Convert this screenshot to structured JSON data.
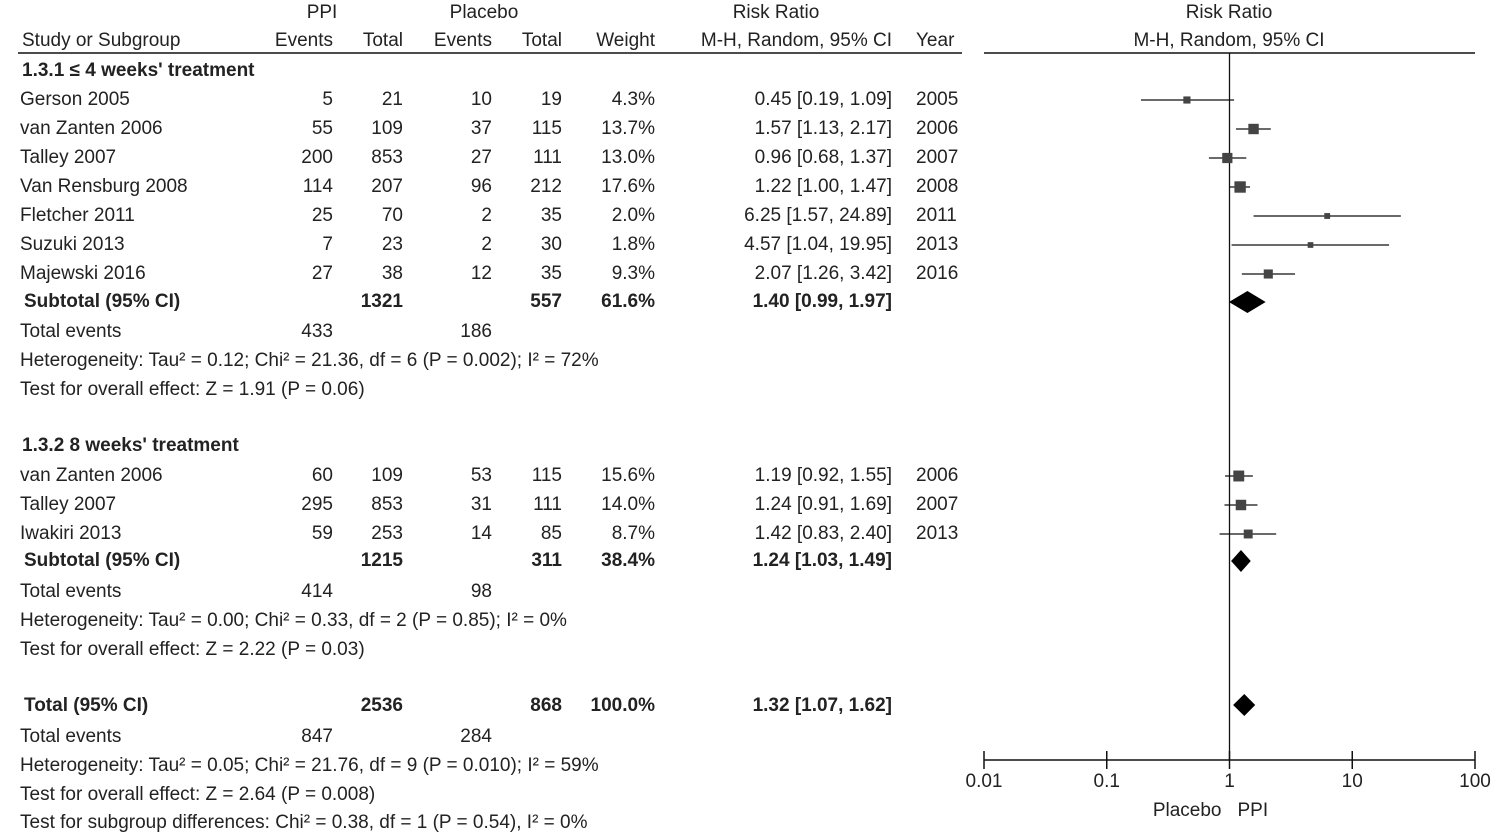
{
  "header": {
    "ppi_label": "PPI",
    "placebo_label": "Placebo",
    "rr_label": "Risk Ratio",
    "plot_rr_label": "Risk Ratio",
    "study_col": "Study or Subgroup",
    "events1": "Events",
    "total1": "Total",
    "events2": "Events",
    "total2": "Total",
    "weight": "Weight",
    "method": "M-H, Random, 95% CI",
    "year": "Year",
    "plot_method": "M-H, Random, 95% CI"
  },
  "subgroups": [
    {
      "title": "1.3.1 ≤ 4 weeks' treatment",
      "studies": [
        {
          "name": "Gerson 2005",
          "e1": "5",
          "t1": "21",
          "e2": "10",
          "t2": "19",
          "w": "4.3%",
          "ci": "0.45 [0.19, 1.09]",
          "year": "2005"
        },
        {
          "name": "van Zanten 2006",
          "e1": "55",
          "t1": "109",
          "e2": "37",
          "t2": "115",
          "w": "13.7%",
          "ci": "1.57 [1.13, 2.17]",
          "year": "2006"
        },
        {
          "name": "Talley 2007",
          "e1": "200",
          "t1": "853",
          "e2": "27",
          "t2": "111",
          "w": "13.0%",
          "ci": "0.96 [0.68, 1.37]",
          "year": "2007"
        },
        {
          "name": "Van Rensburg 2008",
          "e1": "114",
          "t1": "207",
          "e2": "96",
          "t2": "212",
          "w": "17.6%",
          "ci": "1.22 [1.00, 1.47]",
          "year": "2008"
        },
        {
          "name": "Fletcher 2011",
          "e1": "25",
          "t1": "70",
          "e2": "2",
          "t2": "35",
          "w": "2.0%",
          "ci": "6.25 [1.57, 24.89]",
          "year": "2011"
        },
        {
          "name": "Suzuki 2013",
          "e1": "7",
          "t1": "23",
          "e2": "2",
          "t2": "30",
          "w": "1.8%",
          "ci": "4.57 [1.04, 19.95]",
          "year": "2013"
        },
        {
          "name": "Majewski 2016",
          "e1": "27",
          "t1": "38",
          "e2": "12",
          "t2": "35",
          "w": "9.3%",
          "ci": "2.07 [1.26, 3.42]",
          "year": "2016"
        }
      ],
      "subtotal": {
        "label": "Subtotal (95% CI)",
        "t1": "1321",
        "t2": "557",
        "w": "61.6%",
        "ci": "1.40 [0.99, 1.97]"
      },
      "events": {
        "label": "Total events",
        "e1": "433",
        "e2": "186"
      },
      "heterogeneity": "Heterogeneity: Tau² = 0.12; Chi² = 21.36, df = 6 (P = 0.002); I² = 72%",
      "overall": "Test for overall effect: Z = 1.91 (P = 0.06)"
    },
    {
      "title": "1.3.2 8 weeks' treatment",
      "studies": [
        {
          "name": "van Zanten 2006",
          "e1": "60",
          "t1": "109",
          "e2": "53",
          "t2": "115",
          "w": "15.6%",
          "ci": "1.19 [0.92, 1.55]",
          "year": "2006"
        },
        {
          "name": "Talley 2007",
          "e1": "295",
          "t1": "853",
          "e2": "31",
          "t2": "111",
          "w": "14.0%",
          "ci": "1.24 [0.91, 1.69]",
          "year": "2007"
        },
        {
          "name": "Iwakiri 2013",
          "e1": "59",
          "t1": "253",
          "e2": "14",
          "t2": "85",
          "w": "8.7%",
          "ci": "1.42 [0.83, 2.40]",
          "year": "2013"
        }
      ],
      "subtotal": {
        "label": "Subtotal (95% CI)",
        "t1": "1215",
        "t2": "311",
        "w": "38.4%",
        "ci": "1.24 [1.03, 1.49]"
      },
      "events": {
        "label": "Total events",
        "e1": "414",
        "e2": "98"
      },
      "heterogeneity": "Heterogeneity: Tau² = 0.00; Chi² = 0.33, df = 2 (P = 0.85); I² = 0%",
      "overall": "Test for overall effect: Z = 2.22 (P = 0.03)"
    }
  ],
  "total": {
    "label": "Total (95% CI)",
    "t1": "2536",
    "t2": "868",
    "w": "100.0%",
    "ci": "1.32 [1.07, 1.62]",
    "events": {
      "label": "Total events",
      "e1": "847",
      "e2": "284"
    },
    "heterogeneity": "Heterogeneity: Tau² = 0.05; Chi² = 21.76, df = 9 (P = 0.010); I² = 59%",
    "overall": "Test for overall effect: Z = 2.64 (P = 0.008)",
    "subgroup_diff": "Test for subgroup differences: Chi² = 0.38, df = 1 (P = 0.54), I² = 0%"
  },
  "chart_data": {
    "type": "scatter",
    "subtype": "forest",
    "scale": "log",
    "xlim": [
      0.01,
      100
    ],
    "ticks": [
      0.01,
      0.1,
      1,
      10,
      100
    ],
    "tick_labels": [
      "0.01",
      "0.1",
      "1",
      "10",
      "100"
    ],
    "favours_left": "Placebo",
    "favours_right": "PPI",
    "study_estimates": [
      {
        "name": "Gerson 2005",
        "rr": 0.45,
        "lo": 0.19,
        "hi": 1.09,
        "weight": 4.3
      },
      {
        "name": "van Zanten 2006",
        "rr": 1.57,
        "lo": 1.13,
        "hi": 2.17,
        "weight": 13.7
      },
      {
        "name": "Talley 2007",
        "rr": 0.96,
        "lo": 0.68,
        "hi": 1.37,
        "weight": 13.0
      },
      {
        "name": "Van Rensburg 2008",
        "rr": 1.22,
        "lo": 1.0,
        "hi": 1.47,
        "weight": 17.6
      },
      {
        "name": "Fletcher 2011",
        "rr": 6.25,
        "lo": 1.57,
        "hi": 24.89,
        "weight": 2.0
      },
      {
        "name": "Suzuki 2013",
        "rr": 4.57,
        "lo": 1.04,
        "hi": 19.95,
        "weight": 1.8
      },
      {
        "name": "Majewski 2016",
        "rr": 2.07,
        "lo": 1.26,
        "hi": 3.42,
        "weight": 9.3
      },
      {
        "name": "van Zanten 2006",
        "rr": 1.19,
        "lo": 0.92,
        "hi": 1.55,
        "weight": 15.6
      },
      {
        "name": "Talley 2007",
        "rr": 1.24,
        "lo": 0.91,
        "hi": 1.69,
        "weight": 14.0
      },
      {
        "name": "Iwakiri 2013",
        "rr": 1.42,
        "lo": 0.83,
        "hi": 2.4,
        "weight": 8.7
      }
    ],
    "pooled_estimates": [
      {
        "name": "Subtotal (95% CI)",
        "rr": 1.4,
        "lo": 0.99,
        "hi": 1.97
      },
      {
        "name": "Subtotal (95% CI)",
        "rr": 1.24,
        "lo": 1.03,
        "hi": 1.49
      },
      {
        "name": "Total (95% CI)",
        "rr": 1.32,
        "lo": 1.07,
        "hi": 1.62
      }
    ]
  }
}
